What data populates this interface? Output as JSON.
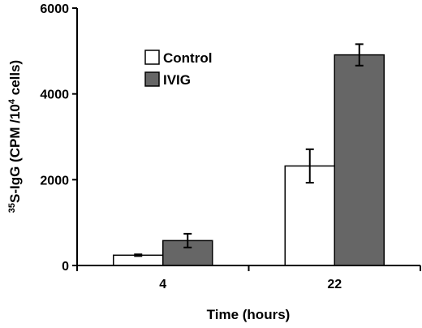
{
  "chart_data": {
    "type": "bar",
    "categories": [
      "4",
      "22"
    ],
    "series": [
      {
        "name": "Control",
        "values": [
          240,
          2320
        ],
        "errors": [
          20,
          390
        ],
        "color": "#ffffff"
      },
      {
        "name": "IVIG",
        "values": [
          580,
          4910
        ],
        "errors": [
          160,
          250
        ],
        "color": "#666666"
      }
    ],
    "xlabel": "Time (hours)",
    "ylabel": {
      "prefix_sup": "35",
      "main": "S-IgG (CPM /10",
      "mid_sup": "4",
      "suffix": " cells)"
    },
    "ylim": [
      0,
      6000
    ],
    "yticks": [
      0,
      2000,
      4000,
      6000
    ],
    "legend_position": "top-left",
    "grid": false
  }
}
